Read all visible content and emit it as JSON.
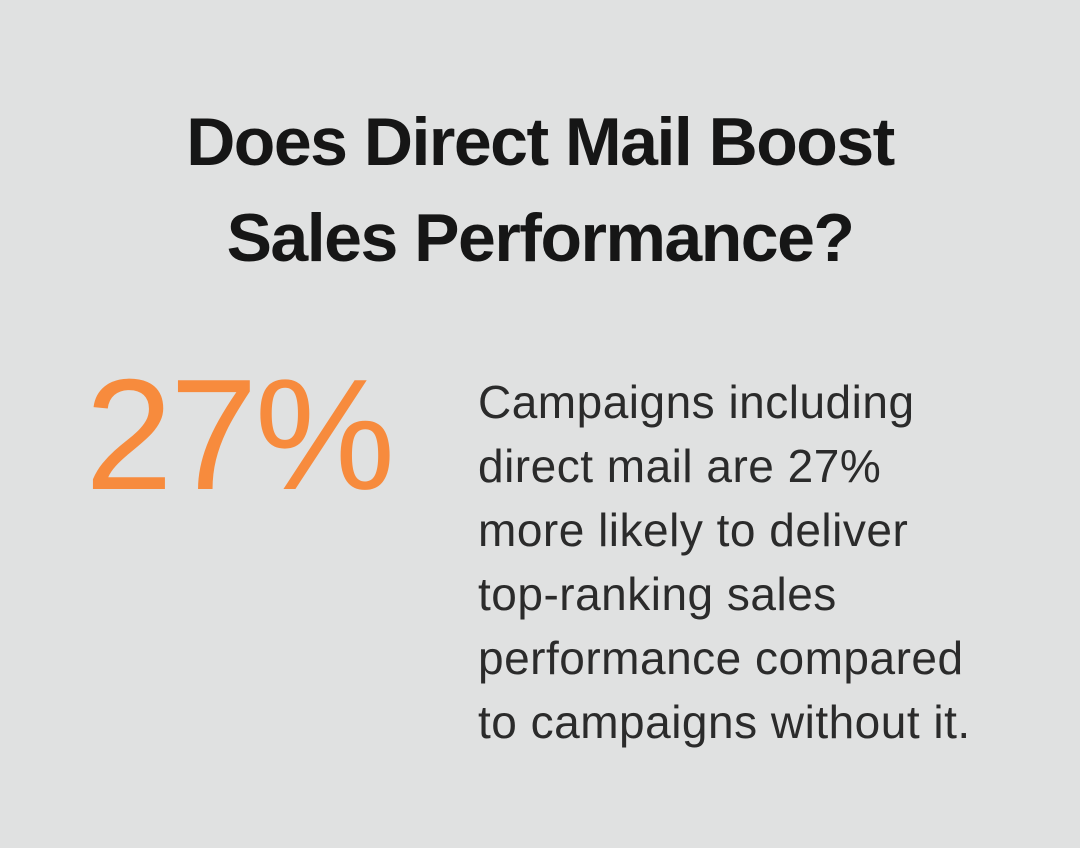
{
  "infographic": {
    "title": "Does Direct Mail Boost\nSales Performance?",
    "stat": {
      "value": "27%",
      "description": "Campaigns including\ndirect mail are 27%\nmore likely to deliver\ntop-ranking sales\nperformance compared\nto campaigns without it."
    },
    "colors": {
      "background": "#e0e1e1",
      "title_text": "#161616",
      "stat_accent": "#f78b3d",
      "body_text": "#2b2b2b"
    }
  }
}
